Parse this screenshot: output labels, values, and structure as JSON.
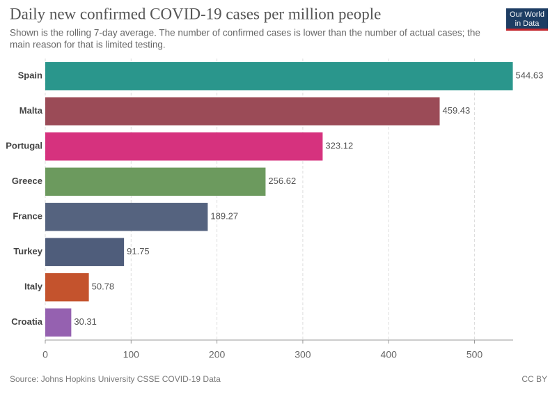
{
  "chart_data": {
    "type": "bar",
    "orientation": "horizontal",
    "title": "Daily new confirmed COVID-19 cases per million people",
    "subtitle": [
      "Shown is the rolling 7-day average. The number of confirmed cases is lower than the number of actual cases; the",
      "main reason for that is limited testing."
    ],
    "logo": [
      "Our World",
      "in Data"
    ],
    "categories": [
      "Spain",
      "Malta",
      "Portugal",
      "Greece",
      "France",
      "Turkey",
      "Italy",
      "Croatia"
    ],
    "values": [
      544.63,
      459.43,
      323.12,
      256.62,
      189.27,
      91.75,
      50.78,
      30.31
    ],
    "colors": [
      "#2a968c",
      "#9b4b57",
      "#d6327e",
      "#6c9a5e",
      "#55637f",
      "#4f5d7b",
      "#c4532d",
      "#9561b0"
    ],
    "xlim": [
      0,
      545
    ],
    "xticks": [
      0,
      100,
      200,
      300,
      400,
      500
    ],
    "grid": true,
    "source": "Source: Johns Hopkins University CSSE COVID-19 Data",
    "license": "CC BY"
  }
}
